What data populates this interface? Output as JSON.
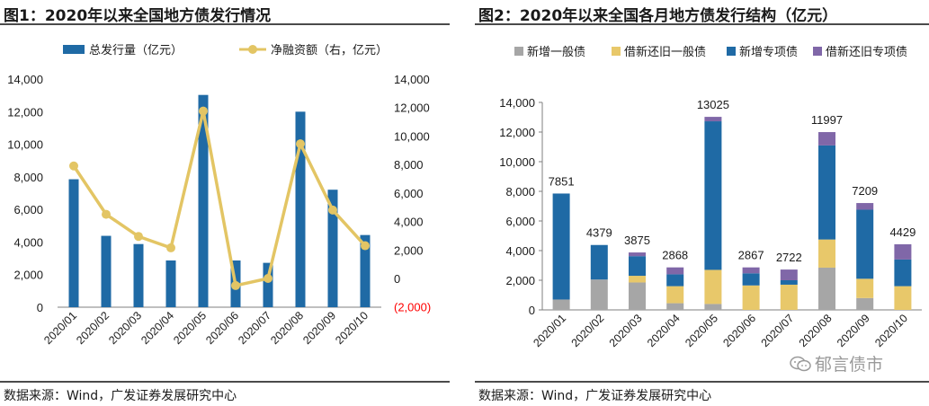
{
  "chart_data": [
    {
      "type": "bar+line",
      "title": "图1：2020年以来全国地方债发行情况",
      "categories": [
        "2020/01",
        "2020/02",
        "2020/03",
        "2020/04",
        "2020/05",
        "2020/06",
        "2020/07",
        "2020/08",
        "2020/09",
        "2020/10"
      ],
      "series": [
        {
          "name": "总发行量（亿元）",
          "type": "bar",
          "axis": "left",
          "color": "#1f6aa5",
          "values": [
            7851,
            4379,
            3875,
            2868,
            13025,
            2867,
            2722,
            11997,
            7209,
            4429
          ]
        },
        {
          "name": "净融资额（右，亿元）",
          "type": "line",
          "axis": "right",
          "color": "#e3c564",
          "values": [
            7900,
            4500,
            2950,
            2150,
            11750,
            -500,
            0,
            9450,
            4800,
            2300
          ]
        }
      ],
      "left_axis": {
        "min": 0,
        "max": 14000,
        "ticks": [
          "0",
          "2,000",
          "4,000",
          "6,000",
          "8,000",
          "10,000",
          "12,000",
          "14,000"
        ]
      },
      "right_axis": {
        "min": -2000,
        "max": 14000,
        "ticks": [
          "(2,000)",
          "0",
          "2,000",
          "4,000",
          "6,000",
          "8,000",
          "10,000",
          "12,000",
          "14,000"
        ],
        "negative_color": "#ff0000"
      },
      "legend_position": "top",
      "source": "数据来源：Wind，广发证券发展研究中心"
    },
    {
      "type": "stacked-bar",
      "title": "图2：2020年以来全国各月地方债发行结构（亿元）",
      "categories": [
        "2020/01",
        "2020/02",
        "2020/03",
        "2020/04",
        "2020/05",
        "2020/06",
        "2020/07",
        "2020/08",
        "2020/09",
        "2020/10"
      ],
      "series": [
        {
          "name": "新增一般债",
          "color": "#a6a6a6",
          "values": [
            700,
            2050,
            1850,
            450,
            400,
            0,
            0,
            2850,
            800,
            0
          ]
        },
        {
          "name": "借新还旧一般债",
          "color": "#e8c86a",
          "values": [
            0,
            0,
            450,
            1150,
            2300,
            1650,
            1700,
            1900,
            1300,
            1600
          ]
        },
        {
          "name": "新增专项债",
          "color": "#1f6aa5",
          "values": [
            7151,
            2329,
            1325,
            800,
            10025,
            817,
            300,
            6347,
            4659,
            1800
          ]
        },
        {
          "name": "借新还旧专项债",
          "color": "#8067a8",
          "values": [
            0,
            0,
            250,
            468,
            300,
            400,
            722,
            900,
            450,
            1029
          ]
        }
      ],
      "totals": [
        "7851",
        "4379",
        "3875",
        "2868",
        "13025",
        "2867",
        "2722",
        "11997",
        "7209",
        "4429"
      ],
      "y_axis": {
        "min": 0,
        "max": 14000,
        "ticks": [
          "0",
          "2,000",
          "4,000",
          "6,000",
          "8,000",
          "10,000",
          "12,000",
          "14,000"
        ]
      },
      "legend_position": "top",
      "source": "数据来源：Wind，广发证券发展研究中心"
    }
  ],
  "watermark": "郁言债市"
}
